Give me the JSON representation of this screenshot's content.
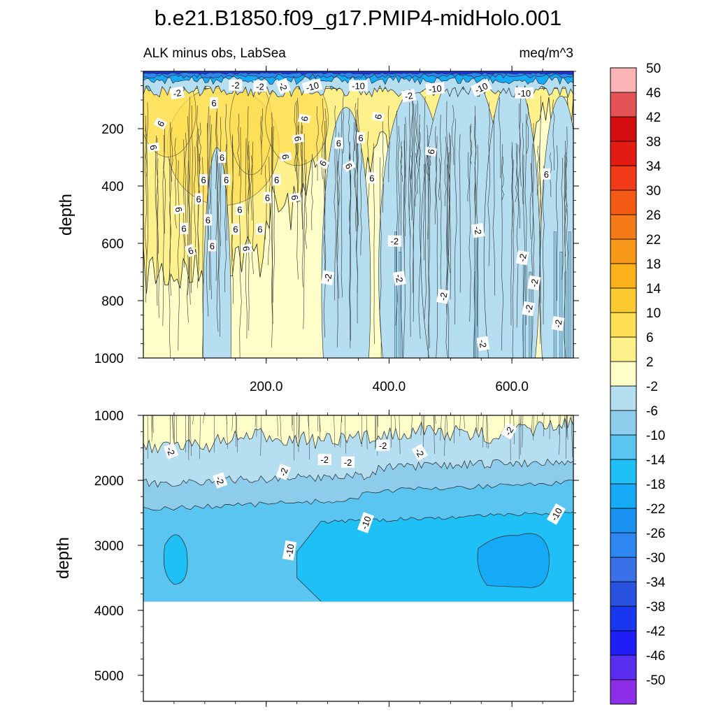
{
  "chart_data": {
    "type": "heatmap",
    "title": "b.e21.B1850.f09_g17.PMIP4-midHolo.001",
    "subtitle_left": "ALK minus obs, LabSea",
    "subtitle_right": "meq/m^3",
    "ylabel": "depth",
    "xlim": [
      0,
      700
    ],
    "x_ticks": [
      200,
      400,
      600
    ],
    "x_tick_labels": [
      "200.0",
      "400.0",
      "600.0"
    ],
    "panels": [
      {
        "name": "upper",
        "ylim": [
          0,
          1000
        ],
        "y_ticks": [
          200,
          400,
          600,
          800,
          1000
        ],
        "y_tick_labels": [
          "200",
          "400",
          "600",
          "800",
          "1000"
        ],
        "contour_labels": [
          {
            "text": "-2",
            "x": 55,
            "y": 75,
            "rot": -10
          },
          {
            "text": "-2",
            "x": 150,
            "y": 48,
            "rot": 0
          },
          {
            "text": "-2",
            "x": 190,
            "y": 52,
            "rot": 0
          },
          {
            "text": "-2",
            "x": 228,
            "y": 52,
            "rot": 70
          },
          {
            "text": "-10",
            "x": 275,
            "y": 52,
            "rot": -15
          },
          {
            "text": "-10",
            "x": 350,
            "y": 50,
            "rot": 0
          },
          {
            "text": "-2",
            "x": 432,
            "y": 85,
            "rot": -10
          },
          {
            "text": "-10",
            "x": 475,
            "y": 60,
            "rot": -5
          },
          {
            "text": "-10",
            "x": 550,
            "y": 57,
            "rot": -25
          },
          {
            "text": "-10",
            "x": 620,
            "y": 75,
            "rot": 0
          },
          {
            "text": "6",
            "x": 115,
            "y": 110,
            "rot": 0
          },
          {
            "text": "6",
            "x": 28,
            "y": 182,
            "rot": -60
          },
          {
            "text": "6",
            "x": 17,
            "y": 265,
            "rot": 80
          },
          {
            "text": "6",
            "x": 262,
            "y": 165,
            "rot": -80
          },
          {
            "text": "6",
            "x": 382,
            "y": 158,
            "rot": -80
          },
          {
            "text": "6",
            "x": 252,
            "y": 235,
            "rot": 80
          },
          {
            "text": "6",
            "x": 318,
            "y": 250,
            "rot": 0
          },
          {
            "text": "6",
            "x": 354,
            "y": 232,
            "rot": 0
          },
          {
            "text": "6",
            "x": 232,
            "y": 298,
            "rot": 80
          },
          {
            "text": "6",
            "x": 128,
            "y": 300,
            "rot": 0
          },
          {
            "text": "6",
            "x": 292,
            "y": 320,
            "rot": -60
          },
          {
            "text": "6",
            "x": 335,
            "y": 330,
            "rot": 60
          },
          {
            "text": "6",
            "x": 468,
            "y": 280,
            "rot": -80
          },
          {
            "text": "6",
            "x": 656,
            "y": 358,
            "rot": 0
          },
          {
            "text": "6",
            "x": 98,
            "y": 378,
            "rot": 0
          },
          {
            "text": "6",
            "x": 135,
            "y": 378,
            "rot": 0
          },
          {
            "text": "6",
            "x": 217,
            "y": 378,
            "rot": 0
          },
          {
            "text": "6",
            "x": 372,
            "y": 372,
            "rot": 0
          },
          {
            "text": "6",
            "x": 90,
            "y": 445,
            "rot": 0
          },
          {
            "text": "6",
            "x": 202,
            "y": 440,
            "rot": 0
          },
          {
            "text": "6",
            "x": 247,
            "y": 440,
            "rot": 80
          },
          {
            "text": "6",
            "x": 58,
            "y": 482,
            "rot": 80
          },
          {
            "text": "6",
            "x": 157,
            "y": 482,
            "rot": 0
          },
          {
            "text": "6",
            "x": 105,
            "y": 518,
            "rot": 0
          },
          {
            "text": "6",
            "x": 66,
            "y": 548,
            "rot": 0
          },
          {
            "text": "6",
            "x": 150,
            "y": 550,
            "rot": 0
          },
          {
            "text": "6",
            "x": 190,
            "y": 550,
            "rot": 0
          },
          {
            "text": "6",
            "x": 112,
            "y": 608,
            "rot": 0
          },
          {
            "text": "6",
            "x": 77,
            "y": 625,
            "rot": -20
          },
          {
            "text": "6",
            "x": 168,
            "y": 618,
            "rot": 80
          },
          {
            "text": "-2",
            "x": 409,
            "y": 592,
            "rot": 0
          },
          {
            "text": "-2",
            "x": 545,
            "y": 555,
            "rot": 80
          },
          {
            "text": "-2",
            "x": 300,
            "y": 720,
            "rot": -80
          },
          {
            "text": "-2",
            "x": 417,
            "y": 722,
            "rot": 80
          },
          {
            "text": "-2",
            "x": 488,
            "y": 785,
            "rot": -80
          },
          {
            "text": "-2",
            "x": 617,
            "y": 650,
            "rot": -80
          },
          {
            "text": "-2",
            "x": 636,
            "y": 738,
            "rot": -80
          },
          {
            "text": "-2",
            "x": 627,
            "y": 828,
            "rot": -80
          },
          {
            "text": "-2",
            "x": 675,
            "y": 880,
            "rot": -80
          },
          {
            "text": "-2",
            "x": 553,
            "y": 950,
            "rot": 80
          }
        ]
      },
      {
        "name": "lower",
        "ylim": [
          1000,
          5400
        ],
        "y_ticks": [
          1000,
          2000,
          3000,
          4000,
          5000
        ],
        "y_tick_labels": [
          "1000",
          "2000",
          "3000",
          "4000",
          "5000"
        ],
        "contour_labels": [
          {
            "text": "-2",
            "x": 45,
            "y": 1550,
            "rot": 70
          },
          {
            "text": "-2",
            "x": 125,
            "y": 2000,
            "rot": 70
          },
          {
            "text": "-2",
            "x": 228,
            "y": 1870,
            "rot": -70
          },
          {
            "text": "-2",
            "x": 295,
            "y": 1680,
            "rot": 0
          },
          {
            "text": "-2",
            "x": 333,
            "y": 1720,
            "rot": 0
          },
          {
            "text": "-2",
            "x": 390,
            "y": 1460,
            "rot": 0
          },
          {
            "text": "-2",
            "x": 450,
            "y": 1570,
            "rot": 60
          },
          {
            "text": "-2",
            "x": 595,
            "y": 1240,
            "rot": -60
          },
          {
            "text": "-10",
            "x": 362,
            "y": 2650,
            "rot": -70
          },
          {
            "text": "-10",
            "x": 238,
            "y": 3080,
            "rot": -80
          },
          {
            "text": "-10",
            "x": 672,
            "y": 2520,
            "rot": -60
          }
        ]
      }
    ],
    "colorbar": {
      "levels": [
        -50,
        -46,
        -42,
        -38,
        -34,
        -30,
        -26,
        -22,
        -18,
        -14,
        -10,
        -6,
        -2,
        2,
        6,
        10,
        14,
        18,
        22,
        26,
        30,
        34,
        38,
        42,
        46,
        50
      ],
      "tick_labels": [
        "-50",
        "-46",
        "-42",
        "-38",
        "-34",
        "-30",
        "-26",
        "-22",
        "-18",
        "-14",
        "-10",
        "-6",
        "-2",
        "2",
        "6",
        "10",
        "14",
        "18",
        "22",
        "26",
        "30",
        "34",
        "38",
        "42",
        "46",
        "50"
      ],
      "colors": [
        "#8c2ee8",
        "#5a2ef0",
        "#1f1ef7",
        "#1a37f0",
        "#2a52e0",
        "#3a70e8",
        "#2e86f0",
        "#1a92f2",
        "#14aaf5",
        "#1ec0f5",
        "#5ac5f0",
        "#8ecceb",
        "#b6def1",
        "#fefec8",
        "#fef08a",
        "#fede55",
        "#fccb32",
        "#fbb11a",
        "#f79818",
        "#f57a18",
        "#f55a14",
        "#f23a1a",
        "#e41a14",
        "#d40e0e",
        "#e35356",
        "#fbb4b6"
      ]
    }
  }
}
